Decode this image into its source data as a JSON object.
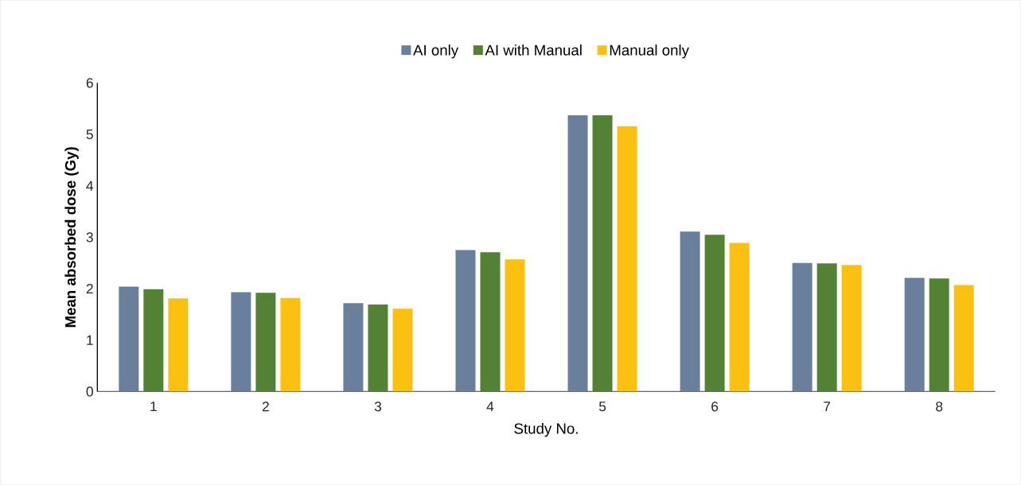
{
  "chart_data": {
    "type": "bar",
    "xlabel": "Study No.",
    "ylabel": "Mean absorbed dose (Gy)",
    "categories": [
      "1",
      "2",
      "3",
      "4",
      "5",
      "6",
      "7",
      "8"
    ],
    "series": [
      {
        "name": "AI only",
        "color": "#6a7f9c",
        "values": [
          2.04,
          1.93,
          1.72,
          2.75,
          5.37,
          3.11,
          2.5,
          2.21
        ]
      },
      {
        "name": "AI with Manual",
        "color": "#548235",
        "values": [
          1.99,
          1.92,
          1.69,
          2.71,
          5.37,
          3.05,
          2.49,
          2.2
        ]
      },
      {
        "name": "Manual only",
        "color": "#fcc010",
        "values": [
          1.81,
          1.82,
          1.61,
          2.57,
          5.16,
          2.89,
          2.46,
          2.07
        ]
      }
    ],
    "ylim": [
      0,
      6
    ],
    "yticks": [
      0,
      1,
      2,
      3,
      4,
      5,
      6
    ],
    "legend": "top"
  }
}
